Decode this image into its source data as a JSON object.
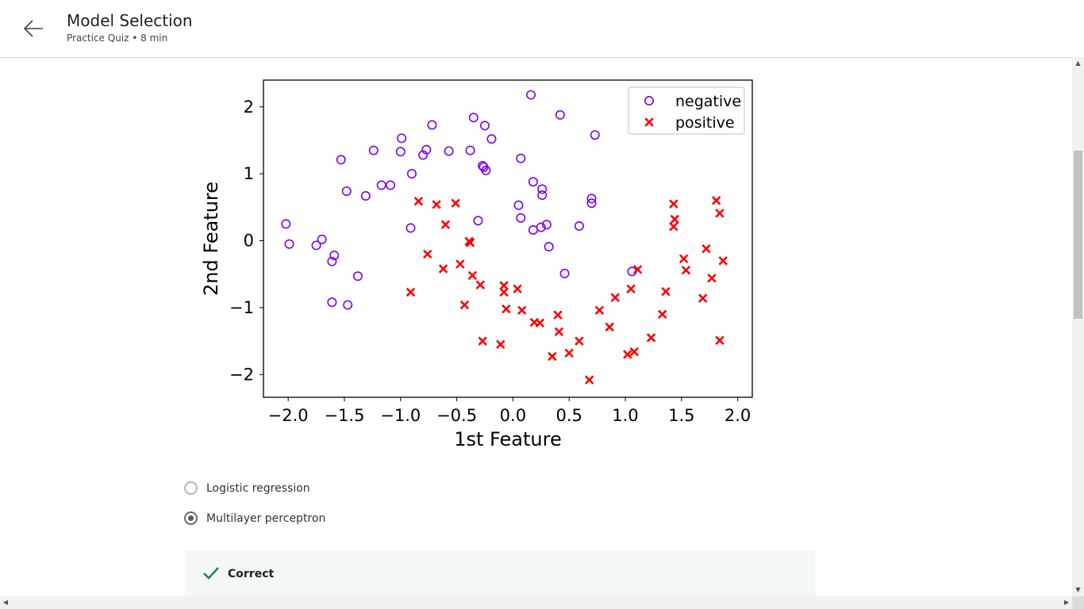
{
  "header": {
    "title": "Model Selection",
    "subtitle": "Practice Quiz • 8 min",
    "back_icon": "arrow-left-icon"
  },
  "colors": {
    "negative": "#7a00ff",
    "positive": "#ff0000",
    "correct": "#1a7f5a",
    "feedback_bg": "#f3f8f6"
  },
  "chart_data": {
    "type": "scatter",
    "xlabel": "1st Feature",
    "ylabel": "2nd Feature",
    "xlim": [
      -2.22,
      2.13
    ],
    "ylim": [
      -2.34,
      2.4
    ],
    "xticks": [
      "−2.0",
      "−1.5",
      "−1.0",
      "−0.5",
      "0.0",
      "0.5",
      "1.0",
      "1.5",
      "2.0"
    ],
    "xtick_values": [
      -2.0,
      -1.5,
      -1.0,
      -0.5,
      0.0,
      0.5,
      1.0,
      1.5,
      2.0
    ],
    "yticks": [
      "−2",
      "−1",
      "0",
      "1",
      "2"
    ],
    "ytick_values": [
      -2,
      -1,
      0,
      1,
      2
    ],
    "grid": false,
    "legend_position": "top-right",
    "series": [
      {
        "name": "negative",
        "marker": "circle",
        "points": [
          [
            -2.02,
            0.25
          ],
          [
            -1.99,
            -0.05
          ],
          [
            -1.75,
            -0.07
          ],
          [
            -1.7,
            0.02
          ],
          [
            -1.59,
            -0.22
          ],
          [
            -1.61,
            -0.31
          ],
          [
            -1.38,
            -0.53
          ],
          [
            -1.61,
            -0.92
          ],
          [
            -1.47,
            -0.96
          ],
          [
            -1.53,
            1.21
          ],
          [
            -1.48,
            0.74
          ],
          [
            -1.31,
            0.67
          ],
          [
            -1.24,
            1.35
          ],
          [
            -1.17,
            0.83
          ],
          [
            -1.09,
            0.83
          ],
          [
            -1.0,
            1.33
          ],
          [
            -0.99,
            1.53
          ],
          [
            -0.9,
            1.0
          ],
          [
            -0.91,
            0.19
          ],
          [
            -0.8,
            1.28
          ],
          [
            -0.77,
            1.36
          ],
          [
            -0.72,
            1.73
          ],
          [
            -0.57,
            1.34
          ],
          [
            -0.38,
            1.35
          ],
          [
            -0.35,
            1.84
          ],
          [
            -0.27,
            1.12
          ],
          [
            -0.25,
            1.72
          ],
          [
            -0.19,
            1.52
          ],
          [
            -0.26,
            1.1
          ],
          [
            -0.24,
            1.05
          ],
          [
            -0.31,
            0.3
          ],
          [
            0.05,
            0.53
          ],
          [
            0.07,
            0.34
          ],
          [
            0.07,
            1.23
          ],
          [
            0.16,
            2.18
          ],
          [
            0.18,
            0.88
          ],
          [
            0.18,
            0.16
          ],
          [
            0.26,
            0.77
          ],
          [
            0.26,
            0.68
          ],
          [
            0.25,
            0.2
          ],
          [
            0.3,
            0.24
          ],
          [
            0.32,
            -0.09
          ],
          [
            0.42,
            1.88
          ],
          [
            0.46,
            -0.49
          ],
          [
            0.59,
            0.22
          ],
          [
            0.7,
            0.63
          ],
          [
            0.7,
            0.56
          ],
          [
            0.73,
            1.58
          ],
          [
            1.06,
            -0.46
          ]
        ]
      },
      {
        "name": "positive",
        "marker": "x",
        "points": [
          [
            -0.84,
            0.59
          ],
          [
            -0.68,
            0.54
          ],
          [
            -0.51,
            0.56
          ],
          [
            -0.6,
            0.24
          ],
          [
            -0.76,
            -0.2
          ],
          [
            -0.62,
            -0.42
          ],
          [
            -0.47,
            -0.35
          ],
          [
            -0.39,
            -0.01
          ],
          [
            -0.38,
            -0.03
          ],
          [
            -0.36,
            -0.52
          ],
          [
            -0.29,
            -0.66
          ],
          [
            -0.43,
            -0.96
          ],
          [
            -0.91,
            -0.77
          ],
          [
            -0.27,
            -1.5
          ],
          [
            -0.11,
            -1.55
          ],
          [
            -0.08,
            -0.67
          ],
          [
            -0.08,
            -0.77
          ],
          [
            -0.06,
            -1.02
          ],
          [
            0.04,
            -0.72
          ],
          [
            0.08,
            -1.04
          ],
          [
            0.19,
            -1.22
          ],
          [
            0.24,
            -1.23
          ],
          [
            0.35,
            -1.73
          ],
          [
            0.4,
            -1.11
          ],
          [
            0.41,
            -1.36
          ],
          [
            0.5,
            -1.68
          ],
          [
            0.59,
            -1.5
          ],
          [
            0.68,
            -2.08
          ],
          [
            0.77,
            -1.04
          ],
          [
            0.86,
            -1.29
          ],
          [
            0.91,
            -0.85
          ],
          [
            1.02,
            -1.7
          ],
          [
            1.05,
            -0.72
          ],
          [
            1.08,
            -1.66
          ],
          [
            1.11,
            -0.43
          ],
          [
            1.23,
            -1.45
          ],
          [
            1.33,
            -1.1
          ],
          [
            1.36,
            -0.76
          ],
          [
            1.43,
            0.55
          ],
          [
            1.44,
            0.32
          ],
          [
            1.43,
            0.21
          ],
          [
            1.52,
            -0.27
          ],
          [
            1.54,
            -0.44
          ],
          [
            1.69,
            -0.86
          ],
          [
            1.72,
            -0.12
          ],
          [
            1.77,
            -0.56
          ],
          [
            1.81,
            0.6
          ],
          [
            1.84,
            0.41
          ],
          [
            1.84,
            -1.49
          ],
          [
            1.87,
            -0.3
          ]
        ]
      }
    ]
  },
  "options": [
    {
      "label": "Logistic regression",
      "checked": false
    },
    {
      "label": "Multilayer perceptron",
      "checked": true
    }
  ],
  "feedback": {
    "icon": "check-icon",
    "text": "Correct"
  }
}
